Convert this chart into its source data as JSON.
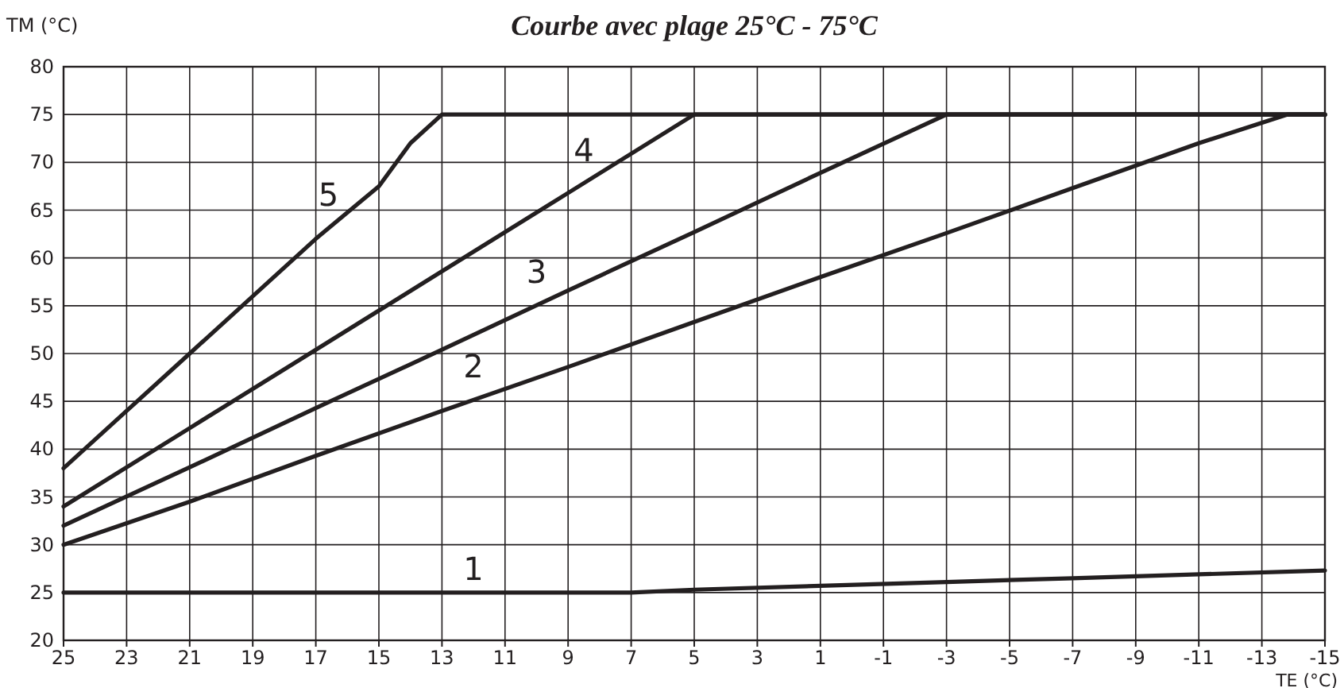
{
  "chart_data": {
    "type": "line",
    "title": "Courbe avec plage 25°C - 75°C",
    "xlabel": "TE (°C)",
    "ylabel": "TM (°C)",
    "xlim": [
      25,
      -15
    ],
    "xticks": [
      25,
      23,
      21,
      19,
      17,
      15,
      13,
      11,
      9,
      7,
      5,
      3,
      1,
      -1,
      -3,
      -5,
      -7,
      -9,
      -11,
      -13,
      -15
    ],
    "ylim": [
      20,
      80
    ],
    "yticks": [
      20,
      25,
      30,
      35,
      40,
      45,
      50,
      55,
      60,
      65,
      70,
      75,
      80
    ],
    "grid": true,
    "marker": "none",
    "line_style": "solid",
    "series": [
      {
        "name": "1",
        "color": "#231f20",
        "x": [
          25,
          7,
          5,
          1,
          -3,
          -7,
          -11,
          -15
        ],
        "values": [
          25,
          25,
          25.3,
          25.7,
          26.1,
          26.5,
          26.9,
          27.3
        ]
      },
      {
        "name": "2",
        "color": "#231f20",
        "x": [
          25,
          21,
          17,
          13,
          9,
          5,
          1,
          -3,
          -7,
          -11,
          -13.8,
          -15
        ],
        "values": [
          30,
          34.5,
          39.3,
          44,
          48.6,
          53.3,
          58,
          62.6,
          67.3,
          72,
          75,
          75
        ]
      },
      {
        "name": "3",
        "color": "#231f20",
        "x": [
          25,
          21,
          17,
          13,
          9,
          5,
          1,
          -3,
          -15
        ],
        "values": [
          32,
          38.1,
          44.3,
          50.4,
          56.6,
          62.7,
          68.9,
          75,
          75
        ]
      },
      {
        "name": "4",
        "color": "#231f20",
        "x": [
          25,
          21,
          17,
          13,
          9,
          5,
          -15
        ],
        "values": [
          34,
          42.2,
          50.4,
          58.6,
          66.8,
          75,
          75
        ]
      },
      {
        "name": "5",
        "color": "#231f20",
        "x": [
          25,
          23,
          21,
          19,
          17,
          15,
          14,
          13,
          -15
        ],
        "values": [
          38,
          44,
          50,
          56,
          62,
          67.5,
          72,
          75,
          75
        ]
      }
    ]
  }
}
